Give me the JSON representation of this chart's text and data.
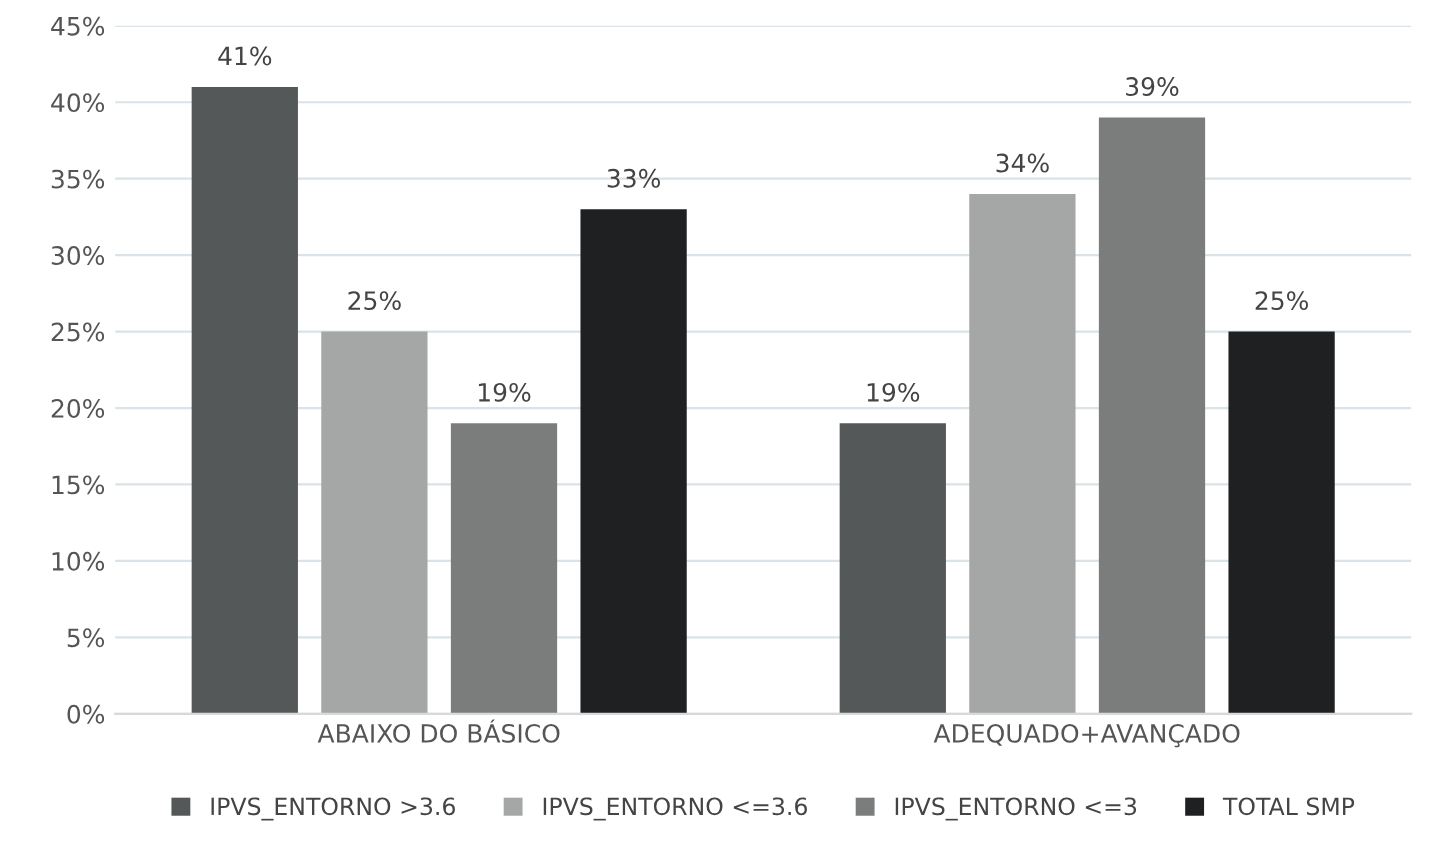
{
  "chart_data": {
    "type": "bar",
    "categories": [
      "ABAIXO DO BÁSICO",
      "ADEQUADO+AVANÇADO"
    ],
    "series": [
      {
        "name": "IPVS_ENTORNO >3.6",
        "color": "#555859",
        "values": [
          41,
          19
        ],
        "value_labels": [
          "41%",
          "19%"
        ]
      },
      {
        "name": "IPVS_ENTORNO <=3.6",
        "color": "#a5a7a7",
        "values": [
          25,
          34
        ],
        "value_labels": [
          "25%",
          "34%"
        ]
      },
      {
        "name": "IPVS_ENTORNO <=3",
        "color": "#7b7d7d",
        "values": [
          19,
          39
        ],
        "value_labels": [
          "19%",
          "39%"
        ]
      },
      {
        "name": "TOTAL SMP",
        "color": "#1e2022",
        "values": [
          33,
          25
        ],
        "value_labels": [
          "33%",
          "25%"
        ]
      }
    ],
    "ylim": [
      0,
      45
    ],
    "yticks": [
      {
        "value": 0,
        "label": "0%"
      },
      {
        "value": 5,
        "label": "5%"
      },
      {
        "value": 10,
        "label": "10%"
      },
      {
        "value": 15,
        "label": "15%"
      },
      {
        "value": 20,
        "label": "20%"
      },
      {
        "value": 25,
        "label": "25%"
      },
      {
        "value": 30,
        "label": "30%"
      },
      {
        "value": 35,
        "label": "35%"
      },
      {
        "value": 40,
        "label": "40%"
      },
      {
        "value": 45,
        "label": "45%"
      }
    ],
    "grid": "y",
    "legend": "bottom"
  }
}
